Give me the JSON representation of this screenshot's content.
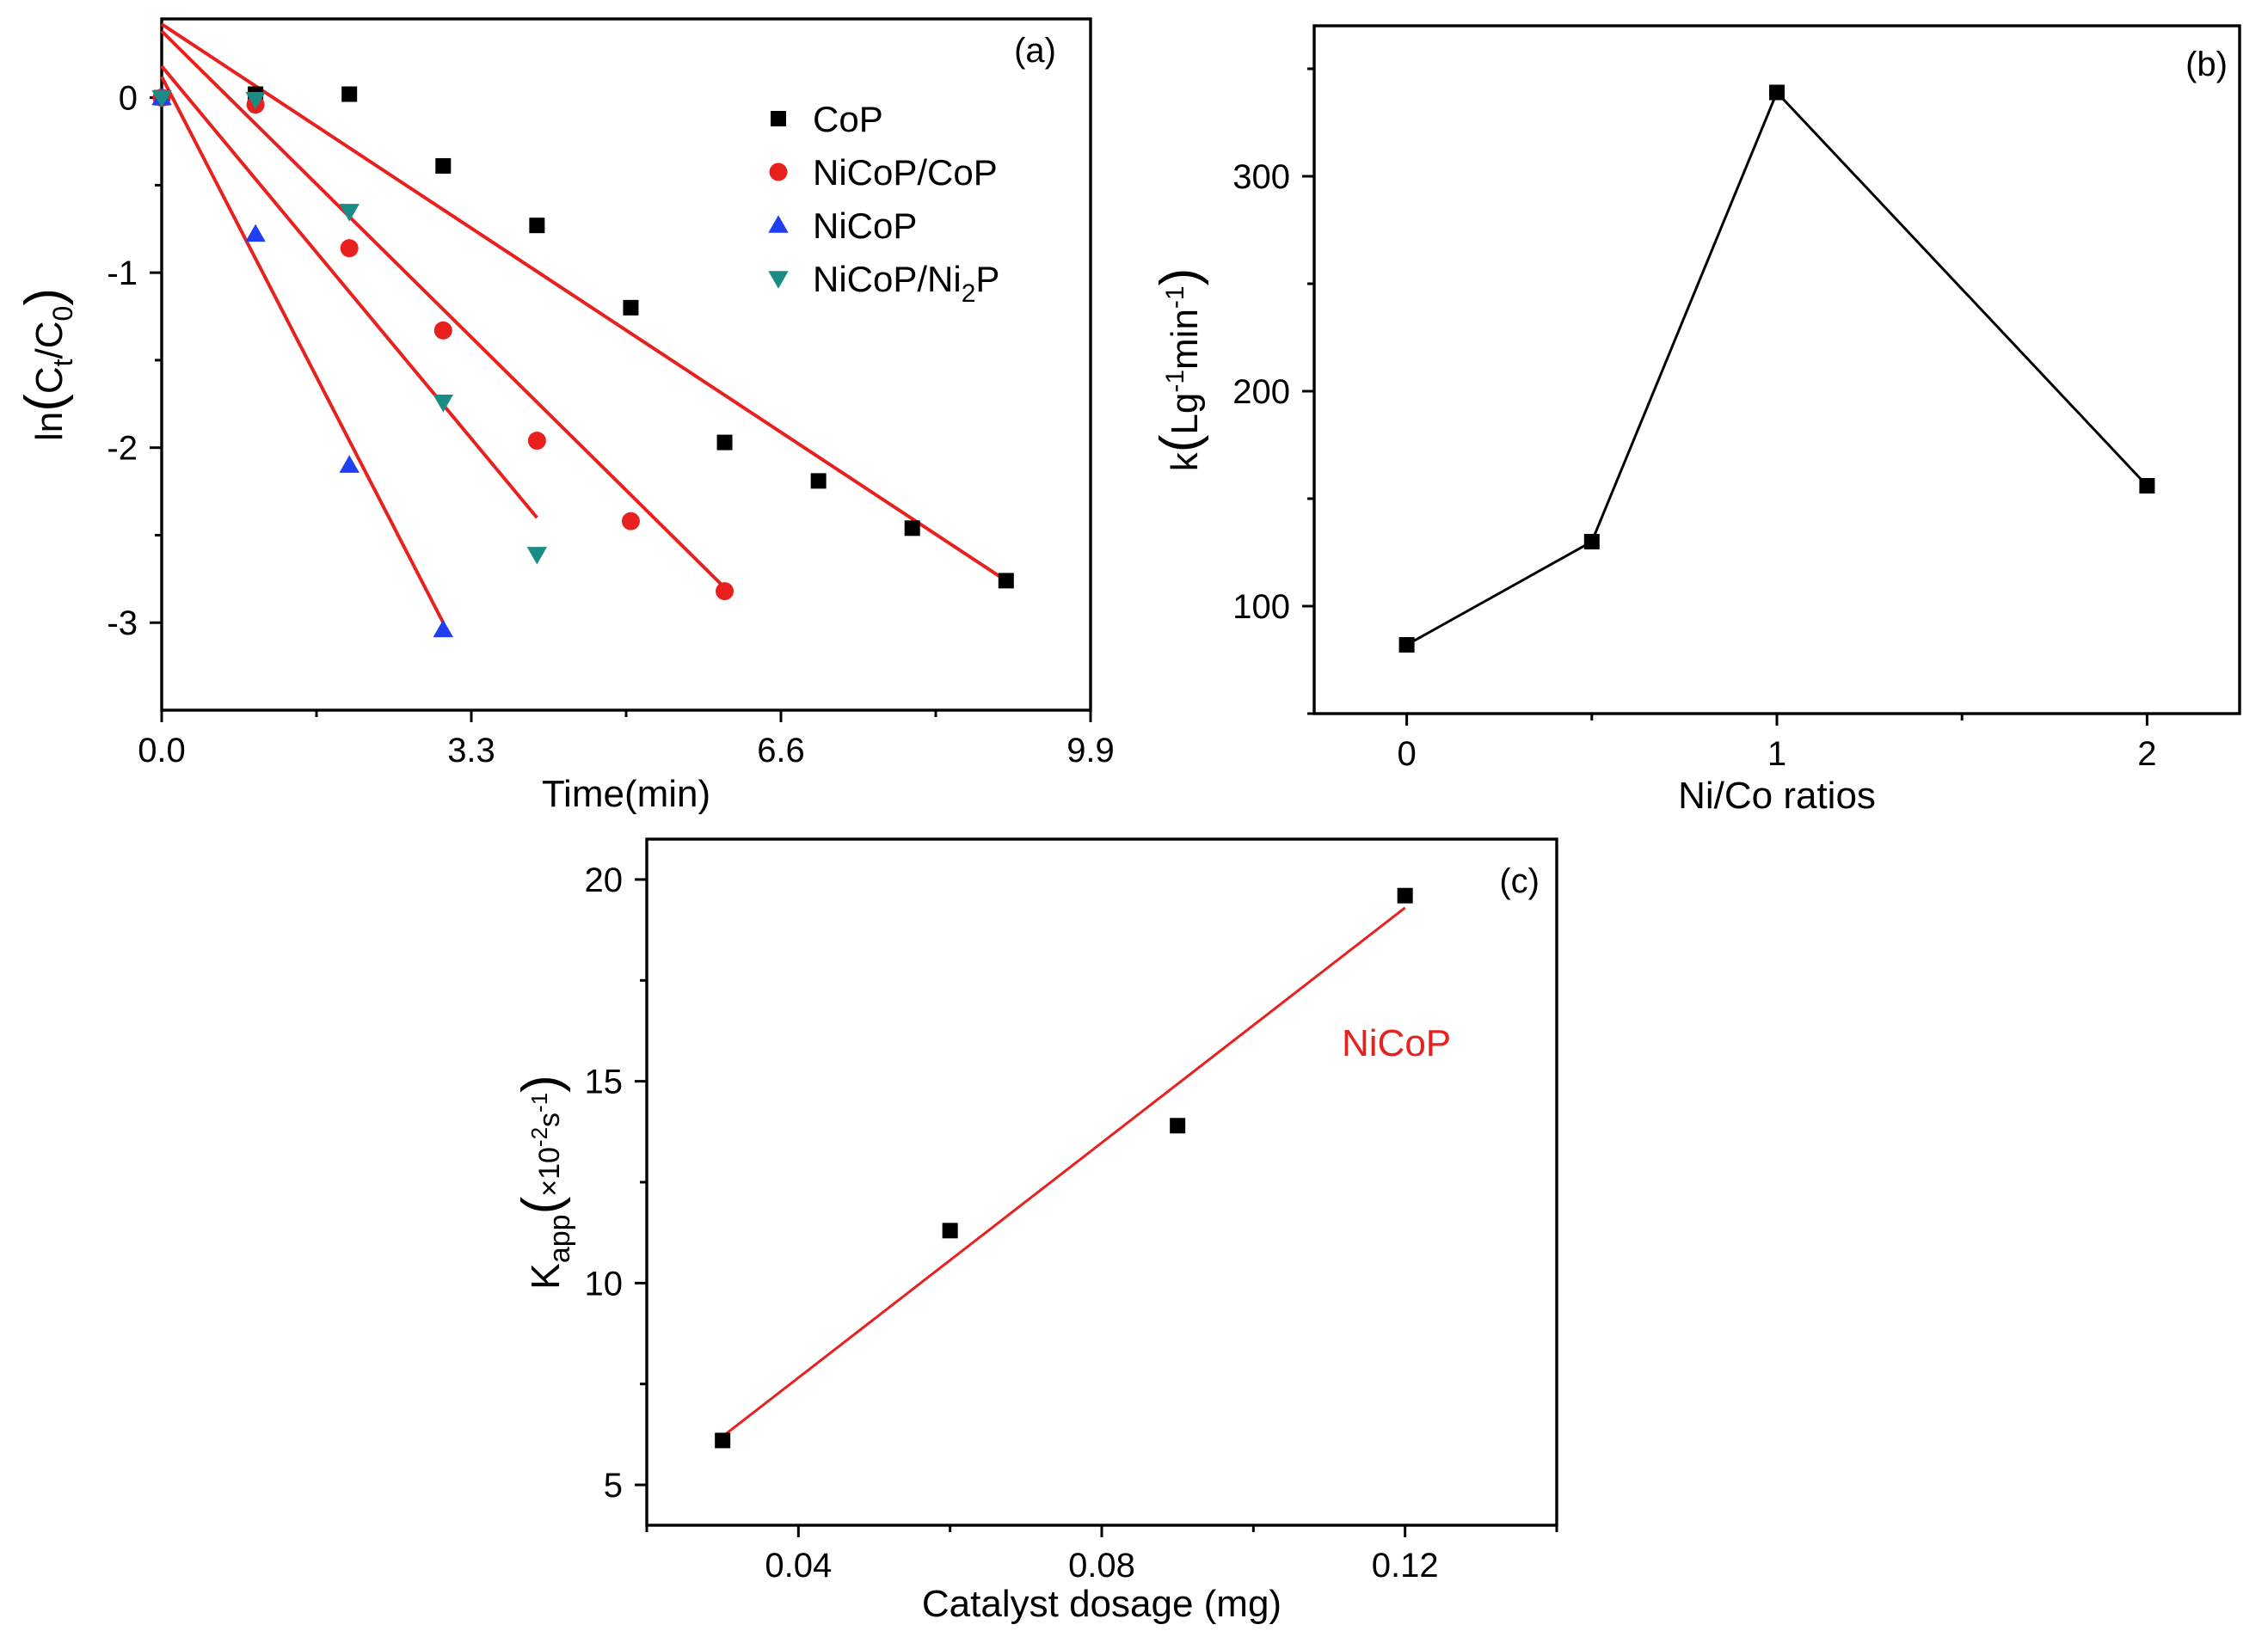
{
  "chart_data": [
    {
      "panel": "(a)",
      "type": "scatter",
      "xlabel": "Time(min)",
      "ylabel": "ln(Ct/C0)",
      "ylabel_parts": {
        "prefix": "ln",
        "c1": "C",
        "s1": "t",
        "slash": "/",
        "c2": "C",
        "s2": "0"
      },
      "xlim": [
        0,
        9.9
      ],
      "ylim": [
        -3.5,
        0.45
      ],
      "xticks": [
        0.0,
        3.3,
        6.6,
        9.9
      ],
      "xtick_labels": [
        "0.0",
        "3.3",
        "6.6",
        "9.9"
      ],
      "yticks": [
        0,
        -1,
        -2,
        -3
      ],
      "ytick_labels": [
        "0",
        "-1",
        "-2",
        "-3"
      ],
      "legend_position": "top-right",
      "series": [
        {
          "name": "CoP",
          "marker": "square",
          "color": "#000000",
          "x": [
            0,
            1,
            2,
            3,
            4,
            5,
            6,
            7,
            8,
            9
          ],
          "y": [
            0.0,
            0.02,
            0.02,
            -0.39,
            -0.73,
            -1.2,
            -1.97,
            -2.19,
            -2.46,
            -2.76
          ],
          "fit": {
            "x": [
              0,
              9
            ],
            "y": [
              0.42,
              -2.76
            ],
            "color": "#e8201e"
          }
        },
        {
          "name": "NiCoP/CoP",
          "marker": "circle",
          "color": "#e8201e",
          "x": [
            0,
            1,
            2,
            3,
            4,
            5,
            6
          ],
          "y": [
            0.0,
            -0.04,
            -0.86,
            -1.33,
            -1.96,
            -2.42,
            -2.82
          ],
          "fit": {
            "x": [
              0,
              6
            ],
            "y": [
              0.38,
              -2.8
            ],
            "color": "#e8201e"
          }
        },
        {
          "name": "NiCoP",
          "marker": "triangle-up",
          "color": "#1f3ff0",
          "x": [
            0,
            1,
            2,
            3
          ],
          "y": [
            0.0,
            -0.78,
            -2.1,
            -3.04
          ],
          "fit": {
            "x": [
              0,
              3
            ],
            "y": [
              0.12,
              -3.0
            ],
            "color": "#e8201e"
          }
        },
        {
          "name": "NiCoP/Ni2P",
          "legend_main": "NiCoP/Ni",
          "legend_sub": "2",
          "legend_tail": "P",
          "marker": "triangle-down",
          "color": "#1a8c86",
          "x": [
            0,
            1,
            2,
            3,
            4
          ],
          "y": [
            0.0,
            -0.01,
            -0.65,
            -1.74,
            -2.61
          ],
          "fit": {
            "x": [
              0,
              4
            ],
            "y": [
              0.18,
              -2.4
            ],
            "color": "#e8201e"
          }
        }
      ]
    },
    {
      "panel": "(b)",
      "type": "line",
      "xlabel": "Ni/Co ratios",
      "ylabel": "k(Lg-1min-1)",
      "ylabel_parts": {
        "prefix": "k",
        "a": "Lg",
        "a_sup": "-1",
        "b": "min",
        "b_sup": "-1"
      },
      "xlim": [
        -0.25,
        2.25
      ],
      "ylim": [
        50,
        370
      ],
      "xticks": [
        0,
        1,
        2
      ],
      "xtick_labels": [
        "0",
        "1",
        "2"
      ],
      "yticks": [
        100,
        200,
        300
      ],
      "ytick_labels": [
        "100",
        "200",
        "300"
      ],
      "series": [
        {
          "name": "k",
          "marker": "square",
          "color": "#000000",
          "x": [
            0,
            0.5,
            1,
            2
          ],
          "y": [
            82,
            130,
            339,
            156
          ]
        }
      ]
    },
    {
      "panel": "(c)",
      "type": "scatter",
      "xlabel": "Catalyst dosage (mg)",
      "ylabel": "Kapp(x10-2s-1)",
      "ylabel_parts": {
        "prefix": "K",
        "sub": "app",
        "a": "×10",
        "a_sup": "-2",
        "b": "s",
        "b_sup": "-1"
      },
      "xlim": [
        0.02,
        0.14
      ],
      "ylim": [
        4,
        21
      ],
      "xticks": [
        0.04,
        0.08,
        0.12
      ],
      "xtick_labels": [
        "0.04",
        "0.08",
        "0.12"
      ],
      "yticks": [
        5,
        10,
        15,
        20
      ],
      "ytick_labels": [
        "5",
        "10",
        "15",
        "20"
      ],
      "annotation": "NiCoP",
      "series": [
        {
          "name": "NiCoP",
          "marker": "square",
          "color": "#000000",
          "x": [
            0.03,
            0.06,
            0.09,
            0.12
          ],
          "y": [
            6.1,
            11.3,
            13.9,
            19.6
          ],
          "fit": {
            "x": [
              0.03,
              0.12
            ],
            "y": [
              6.2,
              19.3
            ],
            "color": "#e8201e"
          }
        }
      ]
    }
  ]
}
